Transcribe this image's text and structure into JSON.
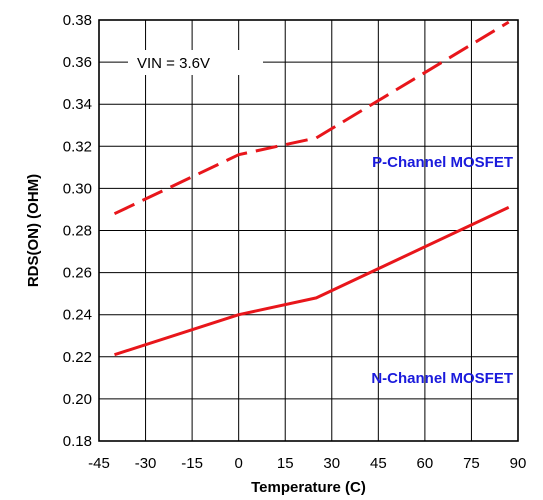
{
  "chart_data": {
    "type": "line",
    "title": "",
    "xlabel": "Temperature (C)",
    "ylabel": "RDS(ON)  (OHM)",
    "xlim": [
      -45,
      90
    ],
    "ylim": [
      0.18,
      0.38
    ],
    "x_ticks": [
      -45,
      -30,
      -15,
      0,
      15,
      30,
      45,
      60,
      75,
      90
    ],
    "x_tick_labels": [
      "-45",
      "-30",
      "-15",
      "0",
      "15",
      "30",
      "45",
      "60",
      "75",
      "90"
    ],
    "y_ticks": [
      0.18,
      0.2,
      0.22,
      0.24,
      0.26,
      0.28,
      0.3,
      0.32,
      0.34,
      0.36,
      0.38
    ],
    "y_tick_labels": [
      "0.18",
      "0.20",
      "0.22",
      "0.24",
      "0.26",
      "0.28",
      "0.30",
      "0.32",
      "0.34",
      "0.36",
      "0.38"
    ],
    "grid": true,
    "annotation": "VIN = 3.6V",
    "series": [
      {
        "name": "P-Channel MOSFET",
        "style": "dashed",
        "color": "#e8161b",
        "label_color": "#1a1adc",
        "x": [
          -40,
          0,
          25,
          87
        ],
        "y": [
          0.288,
          0.316,
          0.324,
          0.379
        ]
      },
      {
        "name": "N-Channel MOSFET",
        "style": "solid",
        "color": "#e8161b",
        "label_color": "#1a1adc",
        "x": [
          -40,
          0,
          25,
          87
        ],
        "y": [
          0.221,
          0.24,
          0.248,
          0.291
        ]
      }
    ]
  }
}
